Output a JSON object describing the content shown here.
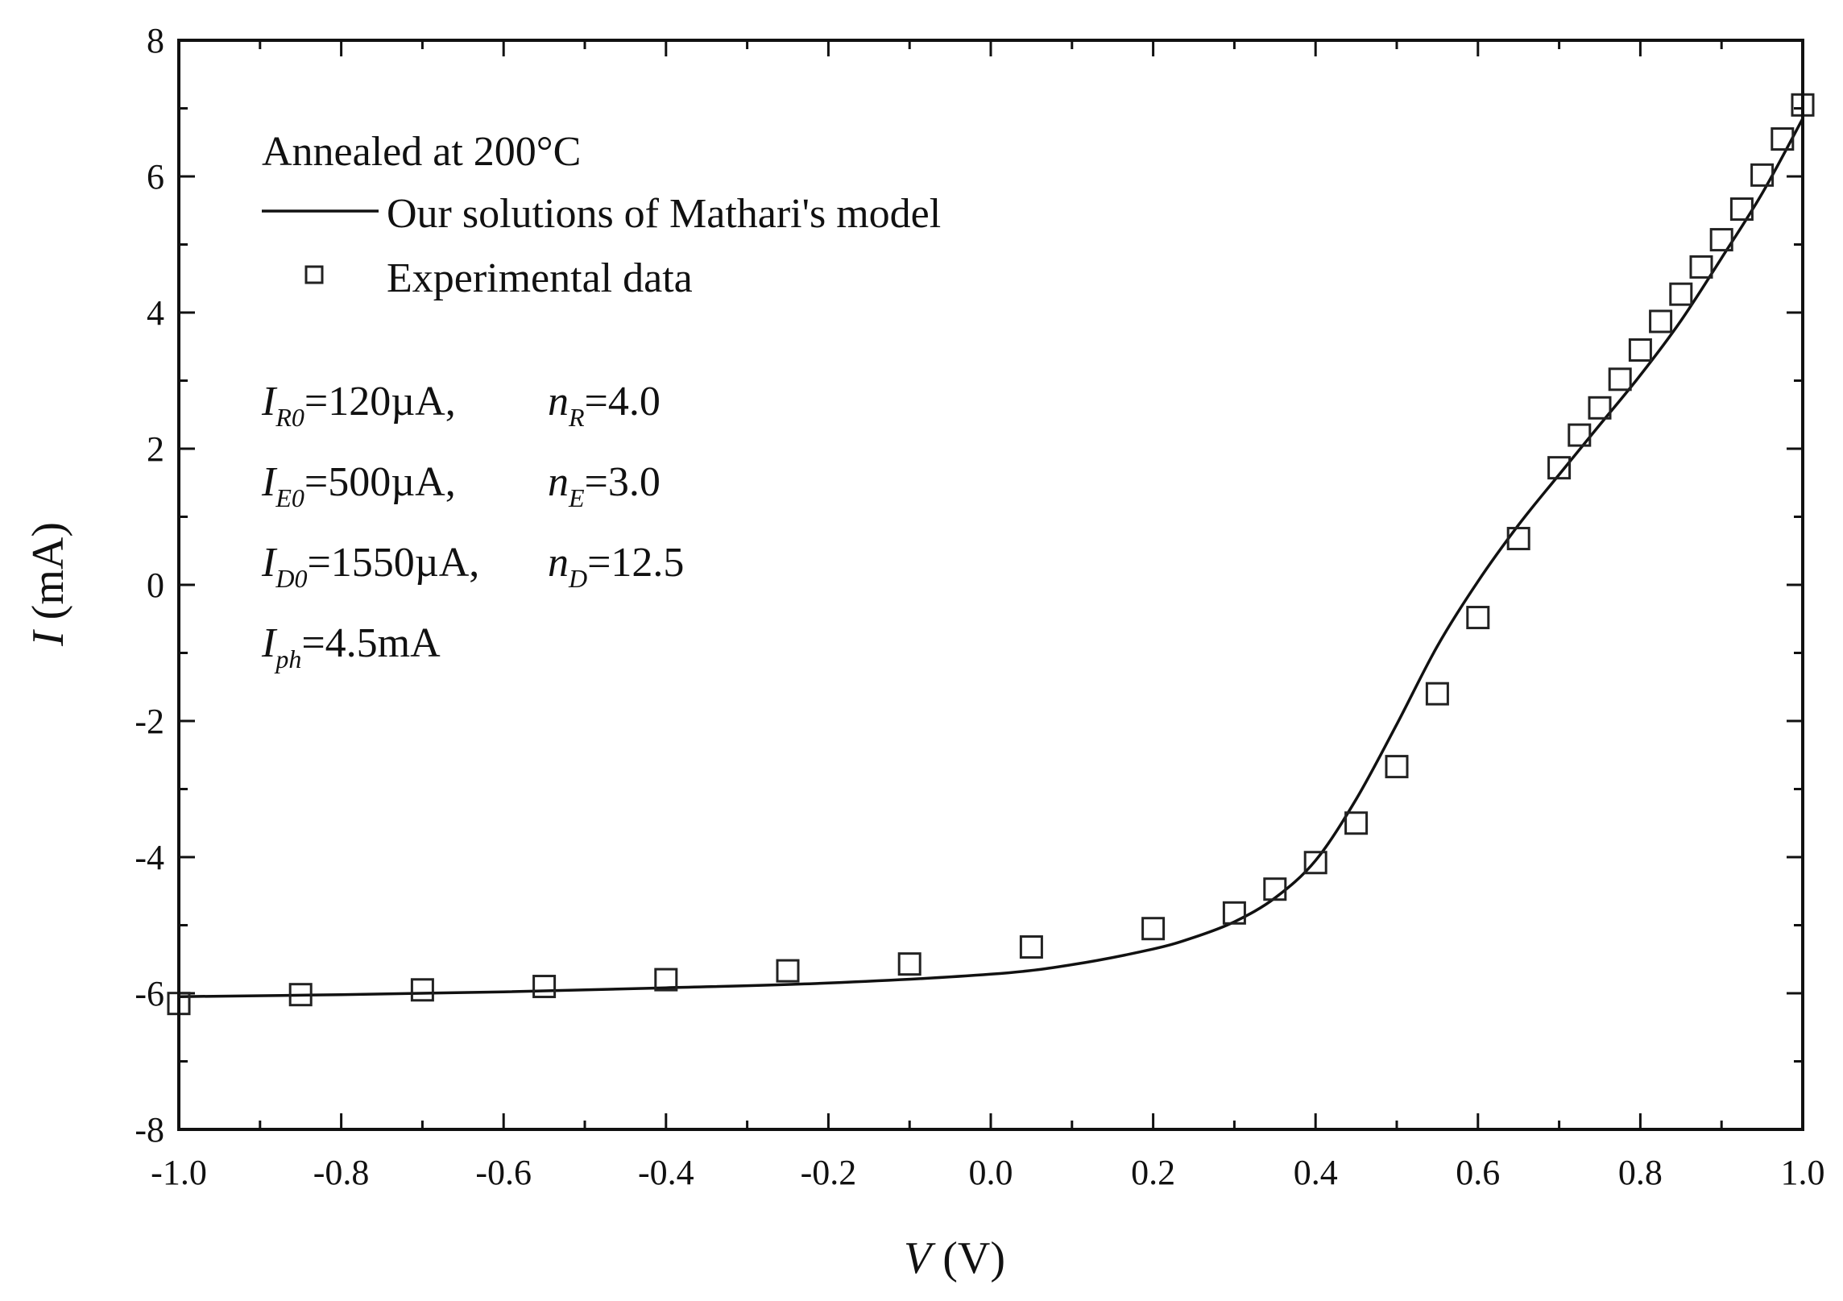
{
  "chart_data": {
    "type": "scatter",
    "title": "",
    "xlabel": "V (V)",
    "ylabel": "I (mA)",
    "xlabel_var": "V",
    "xlabel_unit": " (V)",
    "ylabel_var": "I",
    "ylabel_unit": " (mA)",
    "xlim": [
      -1.0,
      1.0
    ],
    "ylim": [
      -8,
      8
    ],
    "x_ticks": [
      -1.0,
      -0.8,
      -0.6,
      -0.4,
      -0.2,
      0.0,
      0.2,
      0.4,
      0.6,
      0.8,
      1.0
    ],
    "x_tick_labels": [
      "-1.0",
      "-0.8",
      "-0.6",
      "-0.4",
      "-0.2",
      "0.0",
      "0.2",
      "0.4",
      "0.6",
      "0.8",
      "1.0"
    ],
    "y_ticks": [
      -8,
      -6,
      -4,
      -2,
      0,
      2,
      4,
      6,
      8
    ],
    "y_tick_labels": [
      "-8",
      "-6",
      "-4",
      "-2",
      "0",
      "2",
      "4",
      "6",
      "8"
    ],
    "grid": false,
    "legend_position": "top-left",
    "legend_title": "Annealed at 200°C",
    "series": [
      {
        "name": "Our solutions of Mathari's model",
        "kind": "line",
        "x": [
          -1.0,
          -0.8,
          -0.6,
          -0.4,
          -0.2,
          0.0,
          0.1,
          0.2,
          0.25,
          0.3,
          0.35,
          0.4,
          0.45,
          0.5,
          0.55,
          0.6,
          0.65,
          0.7,
          0.75,
          0.8,
          0.85,
          0.9,
          0.95,
          1.0
        ],
        "y": [
          -6.05,
          -6.02,
          -5.98,
          -5.92,
          -5.85,
          -5.72,
          -5.58,
          -5.35,
          -5.18,
          -4.95,
          -4.6,
          -4.05,
          -3.15,
          -2.05,
          -0.9,
          0.05,
          0.88,
          1.62,
          2.35,
          3.08,
          3.88,
          4.8,
          5.75,
          6.85
        ]
      },
      {
        "name": "Experimental data",
        "kind": "scatter",
        "marker": "open-square",
        "x": [
          -1.0,
          -0.85,
          -0.7,
          -0.55,
          -0.4,
          -0.25,
          -0.1,
          0.05,
          0.2,
          0.3,
          0.35,
          0.4,
          0.45,
          0.5,
          0.55,
          0.6,
          0.65,
          0.7,
          0.725,
          0.75,
          0.775,
          0.8,
          0.825,
          0.85,
          0.875,
          0.9,
          0.925,
          0.95,
          0.975,
          1.0
        ],
        "y": [
          -6.15,
          -6.02,
          -5.95,
          -5.9,
          -5.8,
          -5.67,
          -5.57,
          -5.32,
          -5.05,
          -4.82,
          -4.47,
          -4.08,
          -3.5,
          -2.67,
          -1.6,
          -0.48,
          0.68,
          1.72,
          2.2,
          2.6,
          3.02,
          3.45,
          3.87,
          4.27,
          4.67,
          5.07,
          5.52,
          6.02,
          6.55,
          7.05
        ]
      }
    ],
    "annotations": [
      {
        "var": "I",
        "sub": "R0",
        "value": "=120µA,",
        "var2": "n",
        "sub2": "R",
        "value2": "=4.0"
      },
      {
        "var": "I",
        "sub": "E0",
        "value": "=500µA,",
        "var2": "n",
        "sub2": "E",
        "value2": "=3.0"
      },
      {
        "var": "I",
        "sub": "D0",
        "value": "=1550µA,",
        "var2": "n",
        "sub2": "D",
        "value2": "=12.5"
      },
      {
        "var": "I",
        "sub": "ph",
        "value": "=4.5mA"
      }
    ]
  }
}
